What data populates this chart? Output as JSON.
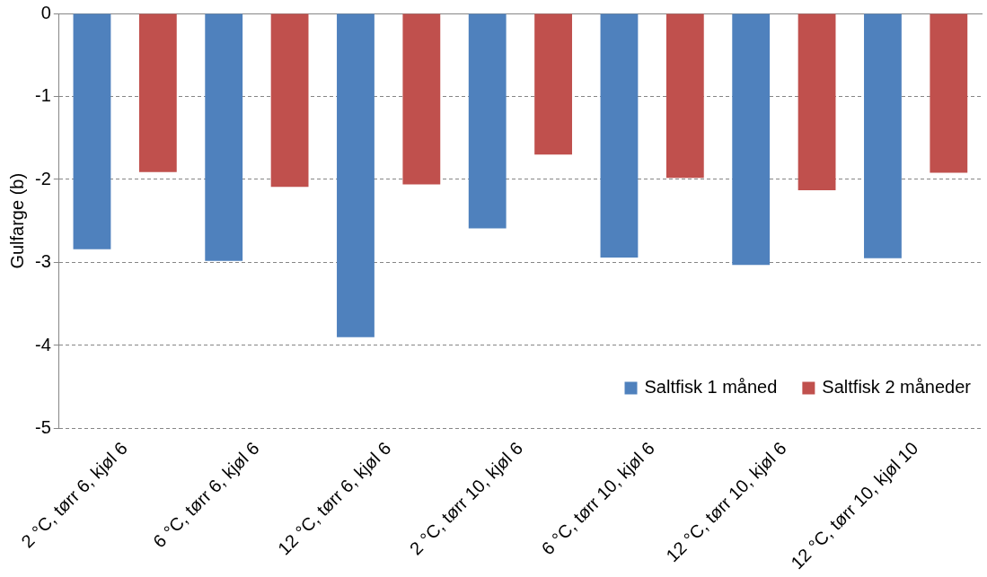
{
  "chart_data": {
    "type": "bar",
    "ylabel": "Gulfarge (b)",
    "categories": [
      "2 °C, tørr 6, kjøl 6",
      "6 °C, tørr 6, kjøl 6",
      "12 °C, tørr 6, kjøl 6",
      "2 °C, tørr 10, kjøl 6",
      "6 °C, tørr 10, kjøl 6",
      "12 °C, tørr 10, kjøl 6",
      "12 °C, tørr 10, kjøl 10"
    ],
    "series": [
      {
        "name": "Saltfisk 1 måned",
        "color": "#4f81bd",
        "values": [
          -2.84,
          -2.98,
          -3.9,
          -2.59,
          -2.94,
          -3.03,
          -2.95
        ]
      },
      {
        "name": "Saltfisk 2 måneder",
        "color": "#c0504d",
        "values": [
          -1.91,
          -2.09,
          -2.06,
          -1.7,
          -1.98,
          -2.13,
          -1.92
        ]
      }
    ],
    "ylim": [
      -5,
      0
    ],
    "yticks": [
      0,
      -1,
      -2,
      -3,
      -4,
      -5
    ],
    "grid": "y",
    "legend": "bottom right"
  }
}
